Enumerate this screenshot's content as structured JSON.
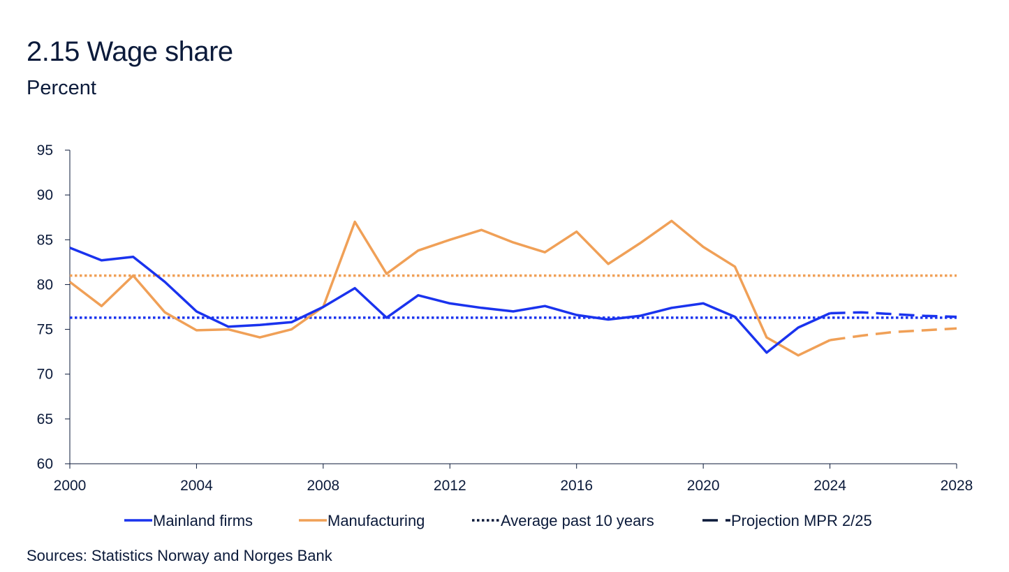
{
  "title": "2.15 Wage share",
  "subtitle": "Percent",
  "source": "Sources: Statistics Norway and  Norges Bank",
  "chart_data": {
    "type": "line",
    "title": "2.15 Wage share",
    "ylabel": "Percent",
    "xlim": [
      2000,
      2028
    ],
    "ylim": [
      60,
      95
    ],
    "xticks": [
      2000,
      2004,
      2008,
      2012,
      2016,
      2020,
      2024,
      2028
    ],
    "yticks": [
      60,
      65,
      70,
      75,
      80,
      85,
      90,
      95
    ],
    "grid": false,
    "legend_position": "bottom",
    "colors": {
      "mainland": "#1a33ee",
      "manufacturing": "#f0a057",
      "dark": "#0b1a3a"
    },
    "series": [
      {
        "key": "mainland",
        "name": "Mainland firms",
        "style": "solid",
        "x": [
          2000,
          2001,
          2002,
          2003,
          2004,
          2005,
          2006,
          2007,
          2008,
          2009,
          2010,
          2011,
          2012,
          2013,
          2014,
          2015,
          2016,
          2017,
          2018,
          2019,
          2020,
          2021,
          2022,
          2023,
          2024
        ],
        "y": [
          84.1,
          82.7,
          83.1,
          80.3,
          77.0,
          75.3,
          75.5,
          75.8,
          77.5,
          79.6,
          76.3,
          78.8,
          77.9,
          77.4,
          77.0,
          77.6,
          76.6,
          76.1,
          76.5,
          77.4,
          77.9,
          76.4,
          72.4,
          75.2,
          76.8
        ]
      },
      {
        "key": "manufacturing",
        "name": "Manufacturing",
        "style": "solid",
        "x": [
          2000,
          2001,
          2002,
          2003,
          2004,
          2005,
          2006,
          2007,
          2008,
          2009,
          2010,
          2011,
          2012,
          2013,
          2014,
          2015,
          2016,
          2017,
          2018,
          2019,
          2020,
          2021,
          2022,
          2023,
          2024
        ],
        "y": [
          80.3,
          77.6,
          81.0,
          76.9,
          74.9,
          75.0,
          74.1,
          75.0,
          77.5,
          87.0,
          81.2,
          83.8,
          85.0,
          86.1,
          84.7,
          83.6,
          85.9,
          82.3,
          84.6,
          87.1,
          84.2,
          82.0,
          74.1,
          72.1,
          73.8
        ]
      },
      {
        "key": "mainland_avg",
        "name": "Average past 10 years",
        "style": "dotted",
        "color_key": "mainland",
        "x": [
          2000,
          2028
        ],
        "y": [
          76.3,
          76.3
        ]
      },
      {
        "key": "manufacturing_avg",
        "name": "Average past 10 years (manufacturing)",
        "style": "dotted",
        "color_key": "manufacturing",
        "x": [
          2000,
          2028
        ],
        "y": [
          81.0,
          81.0
        ]
      },
      {
        "key": "mainland_proj",
        "name": "Projection MPR 2/25",
        "style": "dashed",
        "color_key": "mainland",
        "x": [
          2024,
          2025,
          2026,
          2027,
          2028
        ],
        "y": [
          76.8,
          76.9,
          76.7,
          76.5,
          76.4
        ]
      },
      {
        "key": "manufacturing_proj",
        "name": "Projection MPR 2/25 (manufacturing)",
        "style": "dashed",
        "color_key": "manufacturing",
        "x": [
          2024,
          2025,
          2026,
          2027,
          2028
        ],
        "y": [
          73.8,
          74.3,
          74.7,
          74.9,
          75.1
        ]
      }
    ],
    "legend": [
      {
        "label": "Mainland firms",
        "style": "solid",
        "color_key": "mainland"
      },
      {
        "label": "Manufacturing",
        "style": "solid",
        "color_key": "manufacturing"
      },
      {
        "label": "Average past 10 years",
        "style": "dotted",
        "color_key": "dark"
      },
      {
        "label": "Projection MPR 2/25",
        "style": "dashed",
        "color_key": "dark"
      }
    ]
  }
}
